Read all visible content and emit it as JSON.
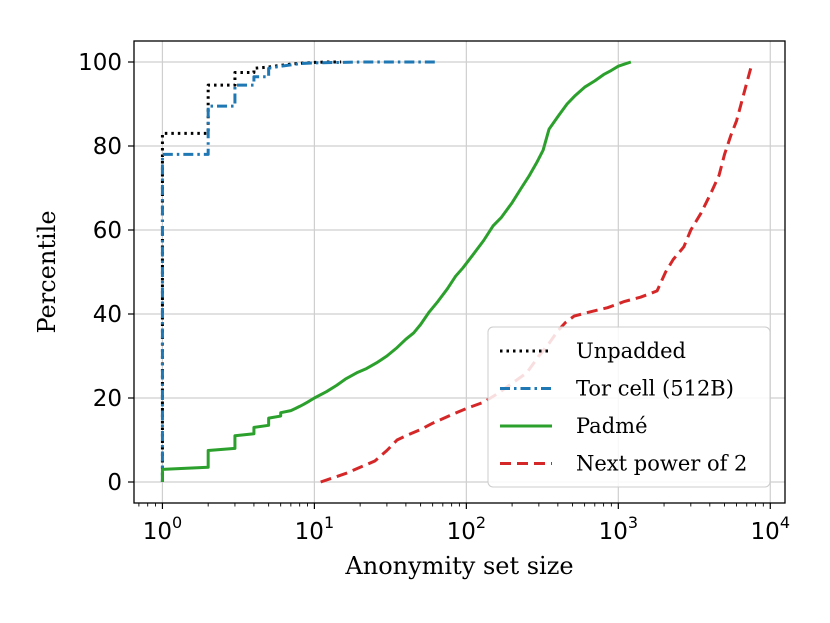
{
  "chart_data": {
    "type": "line",
    "title": "",
    "xlabel": "Anonymity set size",
    "ylabel": "Percentile",
    "x_scale": "log",
    "xlim": [
      0.65,
      12500
    ],
    "ylim": [
      -5,
      105
    ],
    "x_ticks": [
      1,
      10,
      100,
      1000,
      10000
    ],
    "x_tick_labels": [
      {
        "base": "10",
        "exp": "0"
      },
      {
        "base": "10",
        "exp": "1"
      },
      {
        "base": "10",
        "exp": "2"
      },
      {
        "base": "10",
        "exp": "3"
      },
      {
        "base": "10",
        "exp": "4"
      }
    ],
    "y_ticks": [
      0,
      20,
      40,
      60,
      80,
      100
    ],
    "y_tick_labels": [
      "0",
      "20",
      "40",
      "60",
      "80",
      "100"
    ],
    "grid": true,
    "legend_position": "bottom-right",
    "series": [
      {
        "name": "Unpadded",
        "color": "#000000",
        "style": "dotted",
        "x": [
          1,
          1,
          2,
          2,
          3,
          3,
          4,
          4,
          5,
          6,
          7,
          8,
          9,
          10,
          12,
          15
        ],
        "y": [
          0,
          83,
          83,
          94.5,
          94.5,
          97.5,
          97.5,
          98.5,
          98.8,
          99.2,
          99.5,
          99.7,
          99.8,
          99.9,
          100,
          100
        ]
      },
      {
        "name": "Tor cell (512B)",
        "color": "#1f77b4",
        "style": "dashdot",
        "x": [
          1,
          1,
          2,
          2,
          3,
          3,
          4,
          4,
          5,
          5,
          6,
          7,
          8,
          10,
          15,
          20,
          30,
          40,
          62
        ],
        "y": [
          0,
          78,
          78,
          89.5,
          89.5,
          94.5,
          94.5,
          96.5,
          96.5,
          98.5,
          99,
          99.3,
          99.6,
          99.8,
          99.9,
          100,
          100,
          100,
          100
        ]
      },
      {
        "name": "Padmé",
        "color": "#2ca02c",
        "style": "solid",
        "x": [
          1,
          1,
          2,
          2,
          3,
          3,
          4,
          4,
          5,
          5,
          6,
          6,
          7,
          7.5,
          8,
          8.5,
          9,
          10,
          12,
          14,
          16,
          19,
          22,
          26,
          30,
          35,
          40,
          45,
          50,
          57,
          65,
          75,
          85,
          95,
          110,
          130,
          150,
          170,
          200,
          230,
          260,
          290,
          320,
          350,
          400,
          460,
          520,
          600,
          700,
          800,
          900,
          1000,
          1100,
          1210
        ],
        "y": [
          0,
          3,
          3.5,
          7.5,
          8,
          11,
          11.5,
          13,
          13.5,
          15.2,
          15.7,
          16.5,
          17,
          17.5,
          18,
          18.5,
          19,
          20,
          21.5,
          23,
          24.5,
          26,
          27,
          28.5,
          30,
          32,
          34,
          35.5,
          37.5,
          40.5,
          43,
          46,
          49,
          51,
          54,
          57.5,
          61,
          63,
          66.5,
          70,
          73,
          76,
          79,
          84,
          87,
          90,
          92,
          94,
          95.5,
          97,
          98,
          99,
          99.5,
          100
        ]
      },
      {
        "name": "Next power of 2",
        "color": "#d62728",
        "style": "dashed",
        "x": [
          11,
          16,
          20,
          25,
          30,
          35,
          40,
          50,
          60,
          80,
          100,
          130,
          160,
          200,
          250,
          300,
          350,
          400,
          450,
          512,
          650,
          850,
          1100,
          1400,
          1800,
          2048,
          2300,
          2700,
          3000,
          3500,
          4096,
          4600,
          5000,
          5500,
          6000,
          7000,
          7500
        ],
        "y": [
          0,
          2,
          3.5,
          5,
          7.5,
          10,
          11,
          12.5,
          14,
          16,
          17.5,
          19,
          21,
          23.5,
          26,
          30,
          33,
          36,
          38,
          39.5,
          40.5,
          41.5,
          43,
          44,
          45.5,
          50,
          53,
          56,
          60,
          64,
          69,
          73,
          78,
          82.5,
          86,
          95,
          99
        ]
      }
    ]
  }
}
